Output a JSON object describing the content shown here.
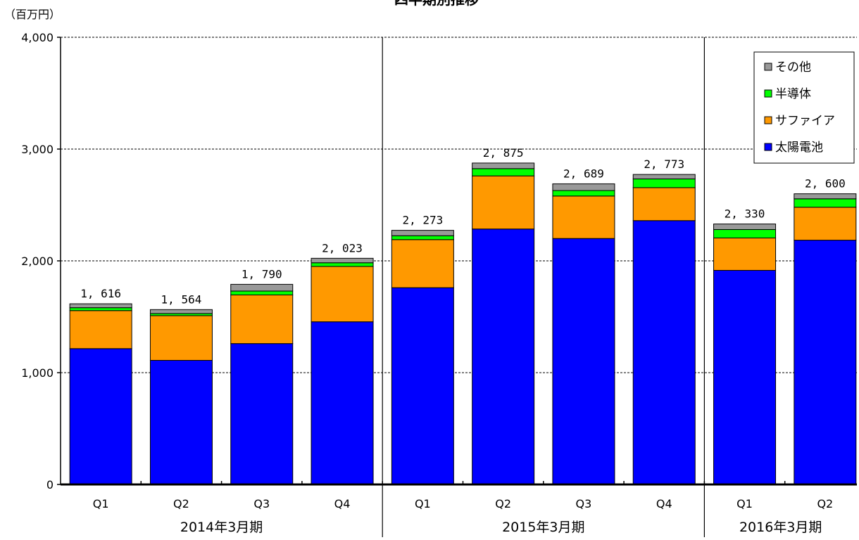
{
  "chart_data": {
    "type": "bar",
    "stacked": true,
    "title": "四半期別推移",
    "unit_label": "（百万円）",
    "ylim": [
      0,
      4000
    ],
    "yticks": [
      {
        "value": 0,
        "label": "0"
      },
      {
        "value": 1000,
        "label": "1,000"
      },
      {
        "value": 2000,
        "label": "2,000"
      },
      {
        "value": 3000,
        "label": "3,000"
      },
      {
        "value": 4000,
        "label": "4,000"
      }
    ],
    "grid": true,
    "legend_position": "top-right",
    "groups": [
      {
        "label": "2014年3月期",
        "categories": [
          "Q1",
          "Q2",
          "Q3",
          "Q4"
        ]
      },
      {
        "label": "2015年3月期",
        "categories": [
          "Q1",
          "Q2",
          "Q3",
          "Q4"
        ]
      },
      {
        "label": "2016年3月期",
        "categories": [
          "Q1",
          "Q2"
        ]
      }
    ],
    "series": [
      {
        "name": "太陽電池",
        "color": "#0000ff",
        "values": [
          1215,
          1110,
          1260,
          1455,
          1760,
          2285,
          2200,
          2360,
          1915,
          2185
        ]
      },
      {
        "name": "サファイア",
        "color": "#ff9900",
        "values": [
          340,
          400,
          435,
          495,
          430,
          475,
          380,
          295,
          290,
          295
        ]
      },
      {
        "name": "半導体",
        "color": "#00ff00",
        "values": [
          26,
          19,
          35,
          33,
          35,
          65,
          49,
          78,
          75,
          75
        ]
      },
      {
        "name": "その他",
        "color": "#999999",
        "values": [
          35,
          35,
          60,
          40,
          48,
          50,
          60,
          40,
          50,
          45
        ]
      }
    ],
    "totals": [
      "1, 616",
      "1, 564",
      "1, 790",
      "2, 023",
      "2, 273",
      "2, 875",
      "2, 689",
      "2, 773",
      "2, 330",
      "2, 600"
    ],
    "legend_order": [
      "その他",
      "半導体",
      "サファイア",
      "太陽電池"
    ]
  }
}
